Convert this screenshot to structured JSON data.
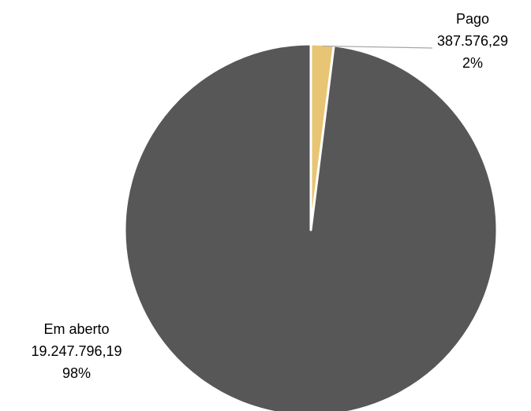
{
  "chart_data": {
    "type": "pie",
    "title": "",
    "slices": [
      {
        "name": "Pago",
        "value": 387576.29,
        "value_label": "387.576,29",
        "percent_label": "2%",
        "color": "#E8C575"
      },
      {
        "name": "Em aberto",
        "value": 19247796.19,
        "value_label": "19.247.796,19",
        "percent_label": "98%",
        "color": "#575757"
      }
    ],
    "separator_color": "#ffffff",
    "leader_line_color": "#a6a6a6",
    "start_angle": "12 o'clock",
    "direction": "clockwise",
    "legend": "none"
  }
}
